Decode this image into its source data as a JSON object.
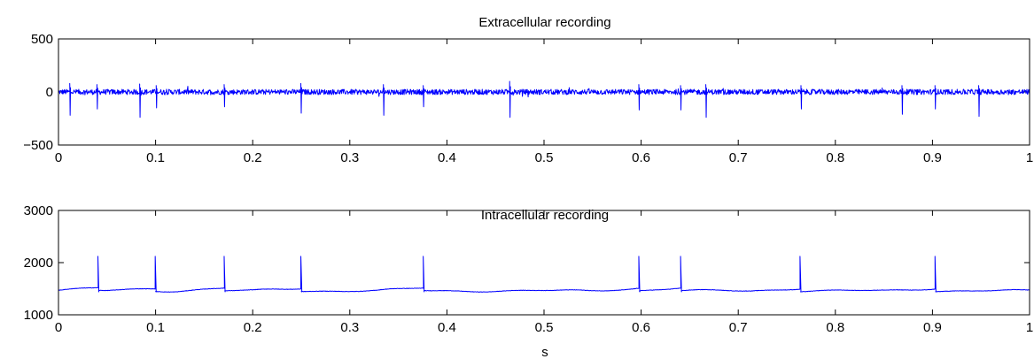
{
  "chart_data": [
    {
      "type": "line",
      "title": "Extracellular recording",
      "xlabel": "",
      "ylabel": "",
      "xlim": [
        0,
        1
      ],
      "ylim": [
        -500,
        500
      ],
      "xticks": [
        0,
        0.1,
        0.2,
        0.3,
        0.4,
        0.5,
        0.6,
        0.7,
        0.8,
        0.9,
        1
      ],
      "xtick_labels": [
        "0",
        "0.1",
        "0.2",
        "0.3",
        "0.4",
        "0.5",
        "0.6",
        "0.7",
        "0.8",
        "0.9",
        "1"
      ],
      "yticks": [
        -500,
        0,
        500
      ],
      "ytick_labels": [
        "−500",
        "0",
        "500"
      ],
      "grid": false,
      "color": "#0000ff",
      "series": [
        {
          "baseline": 0,
          "noise_amplitude": 25,
          "spikes": [
            {
              "x": 0.012,
              "up": 80,
              "down": -220
            },
            {
              "x": 0.04,
              "up": 70,
              "down": -160
            },
            {
              "x": 0.084,
              "up": 75,
              "down": -240
            },
            {
              "x": 0.101,
              "up": 60,
              "down": -150
            },
            {
              "x": 0.171,
              "up": 70,
              "down": -140
            },
            {
              "x": 0.25,
              "up": 80,
              "down": -200
            },
            {
              "x": 0.335,
              "up": 70,
              "down": -220
            },
            {
              "x": 0.376,
              "up": 60,
              "down": -140
            },
            {
              "x": 0.465,
              "up": 100,
              "down": -240
            },
            {
              "x": 0.598,
              "up": 70,
              "down": -170
            },
            {
              "x": 0.641,
              "up": 60,
              "down": -170
            },
            {
              "x": 0.667,
              "up": 70,
              "down": -240
            },
            {
              "x": 0.765,
              "up": 60,
              "down": -160
            },
            {
              "x": 0.869,
              "up": 60,
              "down": -210
            },
            {
              "x": 0.903,
              "up": 60,
              "down": -160
            },
            {
              "x": 0.948,
              "up": 60,
              "down": -230
            }
          ]
        }
      ]
    },
    {
      "type": "line",
      "title": "Intracellular recording",
      "xlabel": "s",
      "ylabel": "",
      "xlim": [
        0,
        1
      ],
      "ylim": [
        1000,
        3000
      ],
      "xticks": [
        0,
        0.1,
        0.2,
        0.3,
        0.4,
        0.5,
        0.6,
        0.7,
        0.8,
        0.9,
        1
      ],
      "xtick_labels": [
        "0",
        "0.1",
        "0.2",
        "0.3",
        "0.4",
        "0.5",
        "0.6",
        "0.7",
        "0.8",
        "0.9",
        "1"
      ],
      "yticks": [
        1000,
        2000,
        3000
      ],
      "ytick_labels": [
        "1000",
        "2000",
        "3000"
      ],
      "grid": false,
      "color": "#0000ff",
      "series": [
        {
          "baseline": 1460,
          "spikes": [
            {
              "x": 0.041,
              "peak": 2120
            },
            {
              "x": 0.1,
              "peak": 2120
            },
            {
              "x": 0.171,
              "peak": 2120
            },
            {
              "x": 0.25,
              "peak": 2120
            },
            {
              "x": 0.376,
              "peak": 2120
            },
            {
              "x": 0.598,
              "peak": 2120
            },
            {
              "x": 0.641,
              "peak": 2120
            },
            {
              "x": 0.764,
              "peak": 2120
            },
            {
              "x": 0.903,
              "peak": 2120
            }
          ]
        }
      ]
    }
  ]
}
